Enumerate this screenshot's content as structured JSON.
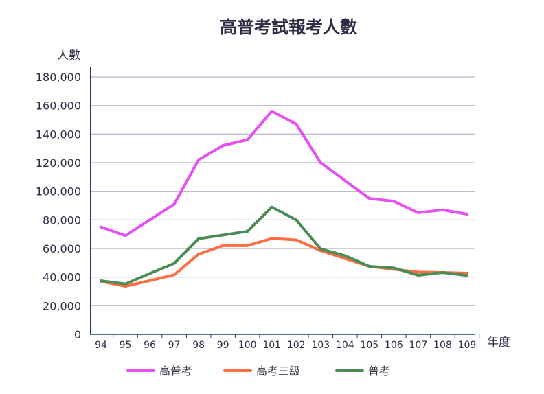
{
  "chart_data": {
    "type": "line",
    "title": "高普考試報考人數",
    "ylabel": "人數",
    "xlabel": "年度",
    "ylim": [
      0,
      180000
    ],
    "yticks": [
      0,
      20000,
      40000,
      60000,
      80000,
      100000,
      120000,
      140000,
      160000,
      180000
    ],
    "ytick_labels": [
      "0",
      "20,000",
      "40,000",
      "60,000",
      "80,000",
      "100,000",
      "120,000",
      "140,000",
      "160,000",
      "180,000"
    ],
    "grid": true,
    "legend_position": "bottom",
    "categories": [
      "94",
      "95",
      "96",
      "97",
      "98",
      "99",
      "100",
      "101",
      "102",
      "103",
      "104",
      "105",
      "106",
      "107",
      "108",
      "109"
    ],
    "series": [
      {
        "name": "高普考",
        "color": "#e64ff2",
        "values": [
          75000,
          69000,
          80000,
          91000,
          122000,
          132000,
          136000,
          156000,
          147000,
          120000,
          107500,
          95000,
          93000,
          85000,
          87000,
          84000
        ]
      },
      {
        "name": "高考三級",
        "color": "#ff6d42",
        "values": [
          37000,
          33600,
          37500,
          41600,
          56000,
          62000,
          62000,
          67000,
          66000,
          58500,
          53000,
          47500,
          45500,
          43500,
          43200,
          42700
        ]
      },
      {
        "name": "普考",
        "color": "#4a8c55",
        "values": [
          37400,
          35200,
          42500,
          49600,
          66800,
          69400,
          72000,
          89000,
          80000,
          59700,
          55000,
          47500,
          46400,
          41300,
          43200,
          41100
        ]
      }
    ]
  }
}
